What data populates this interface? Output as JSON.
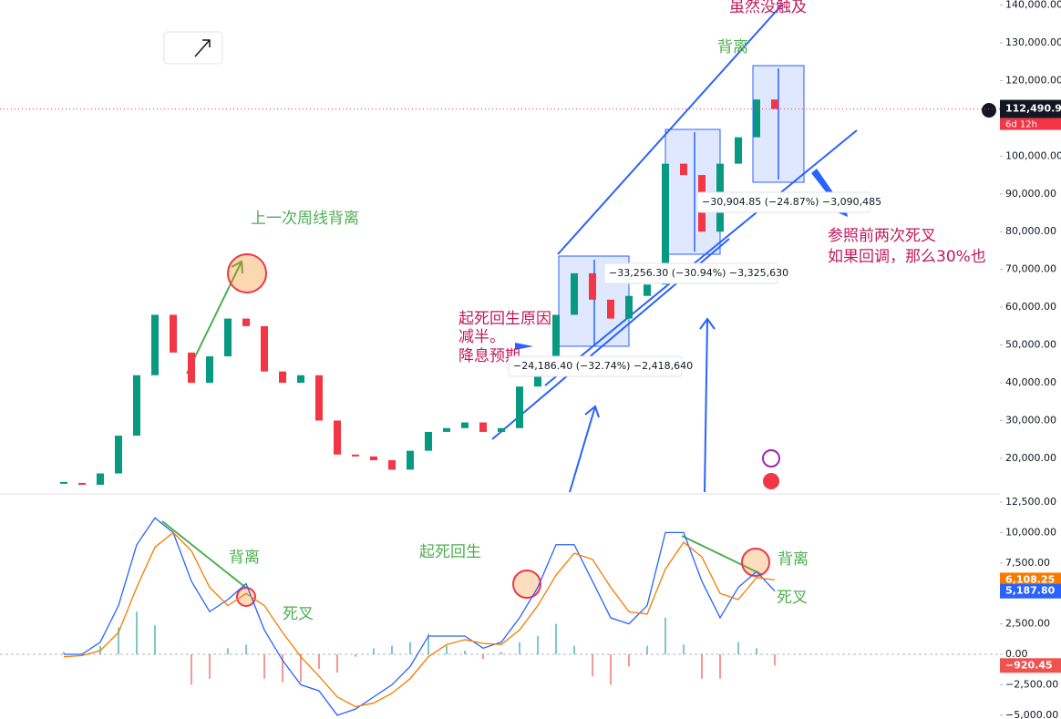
{
  "chart_data": [
    {
      "type": "candle",
      "values": [
        13500,
        13000,
        16000,
        26000,
        42000,
        58000,
        48000,
        40000,
        47000,
        57000,
        55000,
        43000,
        40000,
        42000,
        30000,
        21000,
        20500,
        19500,
        17000,
        22000,
        27000,
        28000,
        29500,
        27000,
        28000,
        39000,
        44000,
        58000,
        69000,
        62000,
        57000,
        63000,
        66000,
        98000,
        95000,
        80000,
        98000,
        105000,
        115000,
        112490.91
      ],
      "up_color": "#089981",
      "down_color": "#f23645",
      "ylim": [
        11060,
        141340
      ],
      "yticks": [
        {
          "value": 20000,
          "label": "20,000.00"
        },
        {
          "value": 30000,
          "label": "30,000.00"
        },
        {
          "value": 40000,
          "label": "40,000.00"
        },
        {
          "value": 50000,
          "label": "50,000.00"
        },
        {
          "value": 60000,
          "label": "60,000.00"
        },
        {
          "value": 70000,
          "label": "70,000.00"
        },
        {
          "value": 80000,
          "label": "80,000.00"
        },
        {
          "value": 90000,
          "label": "90,000.00"
        },
        {
          "value": 100000,
          "label": "100,000.00"
        },
        {
          "value": 110000,
          "label": "110,000.00"
        },
        {
          "value": 120000,
          "label": "120,000.00"
        },
        {
          "value": 130000,
          "label": "130,000.00"
        },
        {
          "value": 140000,
          "label": "140,000.00"
        }
      ],
      "last_label": "112,490.91",
      "countdown": "6d 12h",
      "annotations": [
        "虽然没触及",
        "背离",
        "上一次周线背离",
        "起死回生原因",
        "减半。",
        "降息预期",
        "参照前两次死叉",
        "如果回调，那么30%也"
      ],
      "measurements": [
        "−24,186.40 (−32.74%) −2,418,640",
        "−33,256.30 (−30.94%) −3,325,630",
        "−30,904.85 (−24.87%) −3,090,485"
      ]
    },
    {
      "type": "macd",
      "series": [
        {
          "color": "#2962ff",
          "values": [
            0,
            0,
            1000,
            4000,
            9000,
            11200,
            10000,
            6000,
            3500,
            4500,
            5800,
            2000,
            -500,
            -2500,
            -3000,
            -5000,
            -4500,
            -3500,
            -2500,
            -1000,
            1500,
            1500,
            1500,
            500,
            1000,
            3000,
            5500,
            9000,
            9000,
            6000,
            3000,
            2500,
            4000,
            10000,
            10000,
            6000,
            3000,
            5500,
            6800,
            5187.8
          ],
          "last_label": "5,187.80"
        },
        {
          "color": "#f57c00",
          "values": [
            -200,
            -100,
            300,
            1800,
            5500,
            8800,
            10000,
            8500,
            5500,
            4000,
            5000,
            4000,
            1800,
            -200,
            -1800,
            -3500,
            -4300,
            -4000,
            -3200,
            -2000,
            -200,
            800,
            1200,
            900,
            800,
            2000,
            4000,
            6500,
            8300,
            7800,
            5500,
            3500,
            3300,
            7000,
            9200,
            8000,
            5000,
            4500,
            6300,
            6108.25
          ],
          "last_label": "6,108.25"
        }
      ],
      "histogram": {
        "up_color": "#26a69a",
        "down_color": "#ef5350",
        "values": [
          200,
          100,
          700,
          2200,
          3500,
          2400,
          0,
          -2500,
          -2000,
          500,
          800,
          -2000,
          -2300,
          -2300,
          -1200,
          -1500,
          -200,
          500,
          700,
          1000,
          1700,
          700,
          300,
          -400,
          200,
          1000,
          1500,
          2500,
          700,
          -1800,
          -2500,
          -1000,
          700,
          3000,
          800,
          -2000,
          -2000,
          1000,
          500,
          -920.45
        ],
        "last_label": "−920.45"
      },
      "ylim": [
        -5314,
        12949
      ],
      "yticks": [
        {
          "value": -5000,
          "label": "−5,000.00"
        },
        {
          "value": -2500,
          "label": "−2,500.00"
        },
        {
          "value": 0,
          "label": "0.00"
        },
        {
          "value": 2500,
          "label": "2,500.00"
        },
        {
          "value": 7500,
          "label": "7,500.00"
        },
        {
          "value": 10000,
          "label": "10,000.00"
        },
        {
          "value": 12500,
          "label": "12,500.00"
        }
      ],
      "annotations": [
        "背离",
        "死叉",
        "起死回生",
        "背离",
        "死叉"
      ]
    }
  ]
}
